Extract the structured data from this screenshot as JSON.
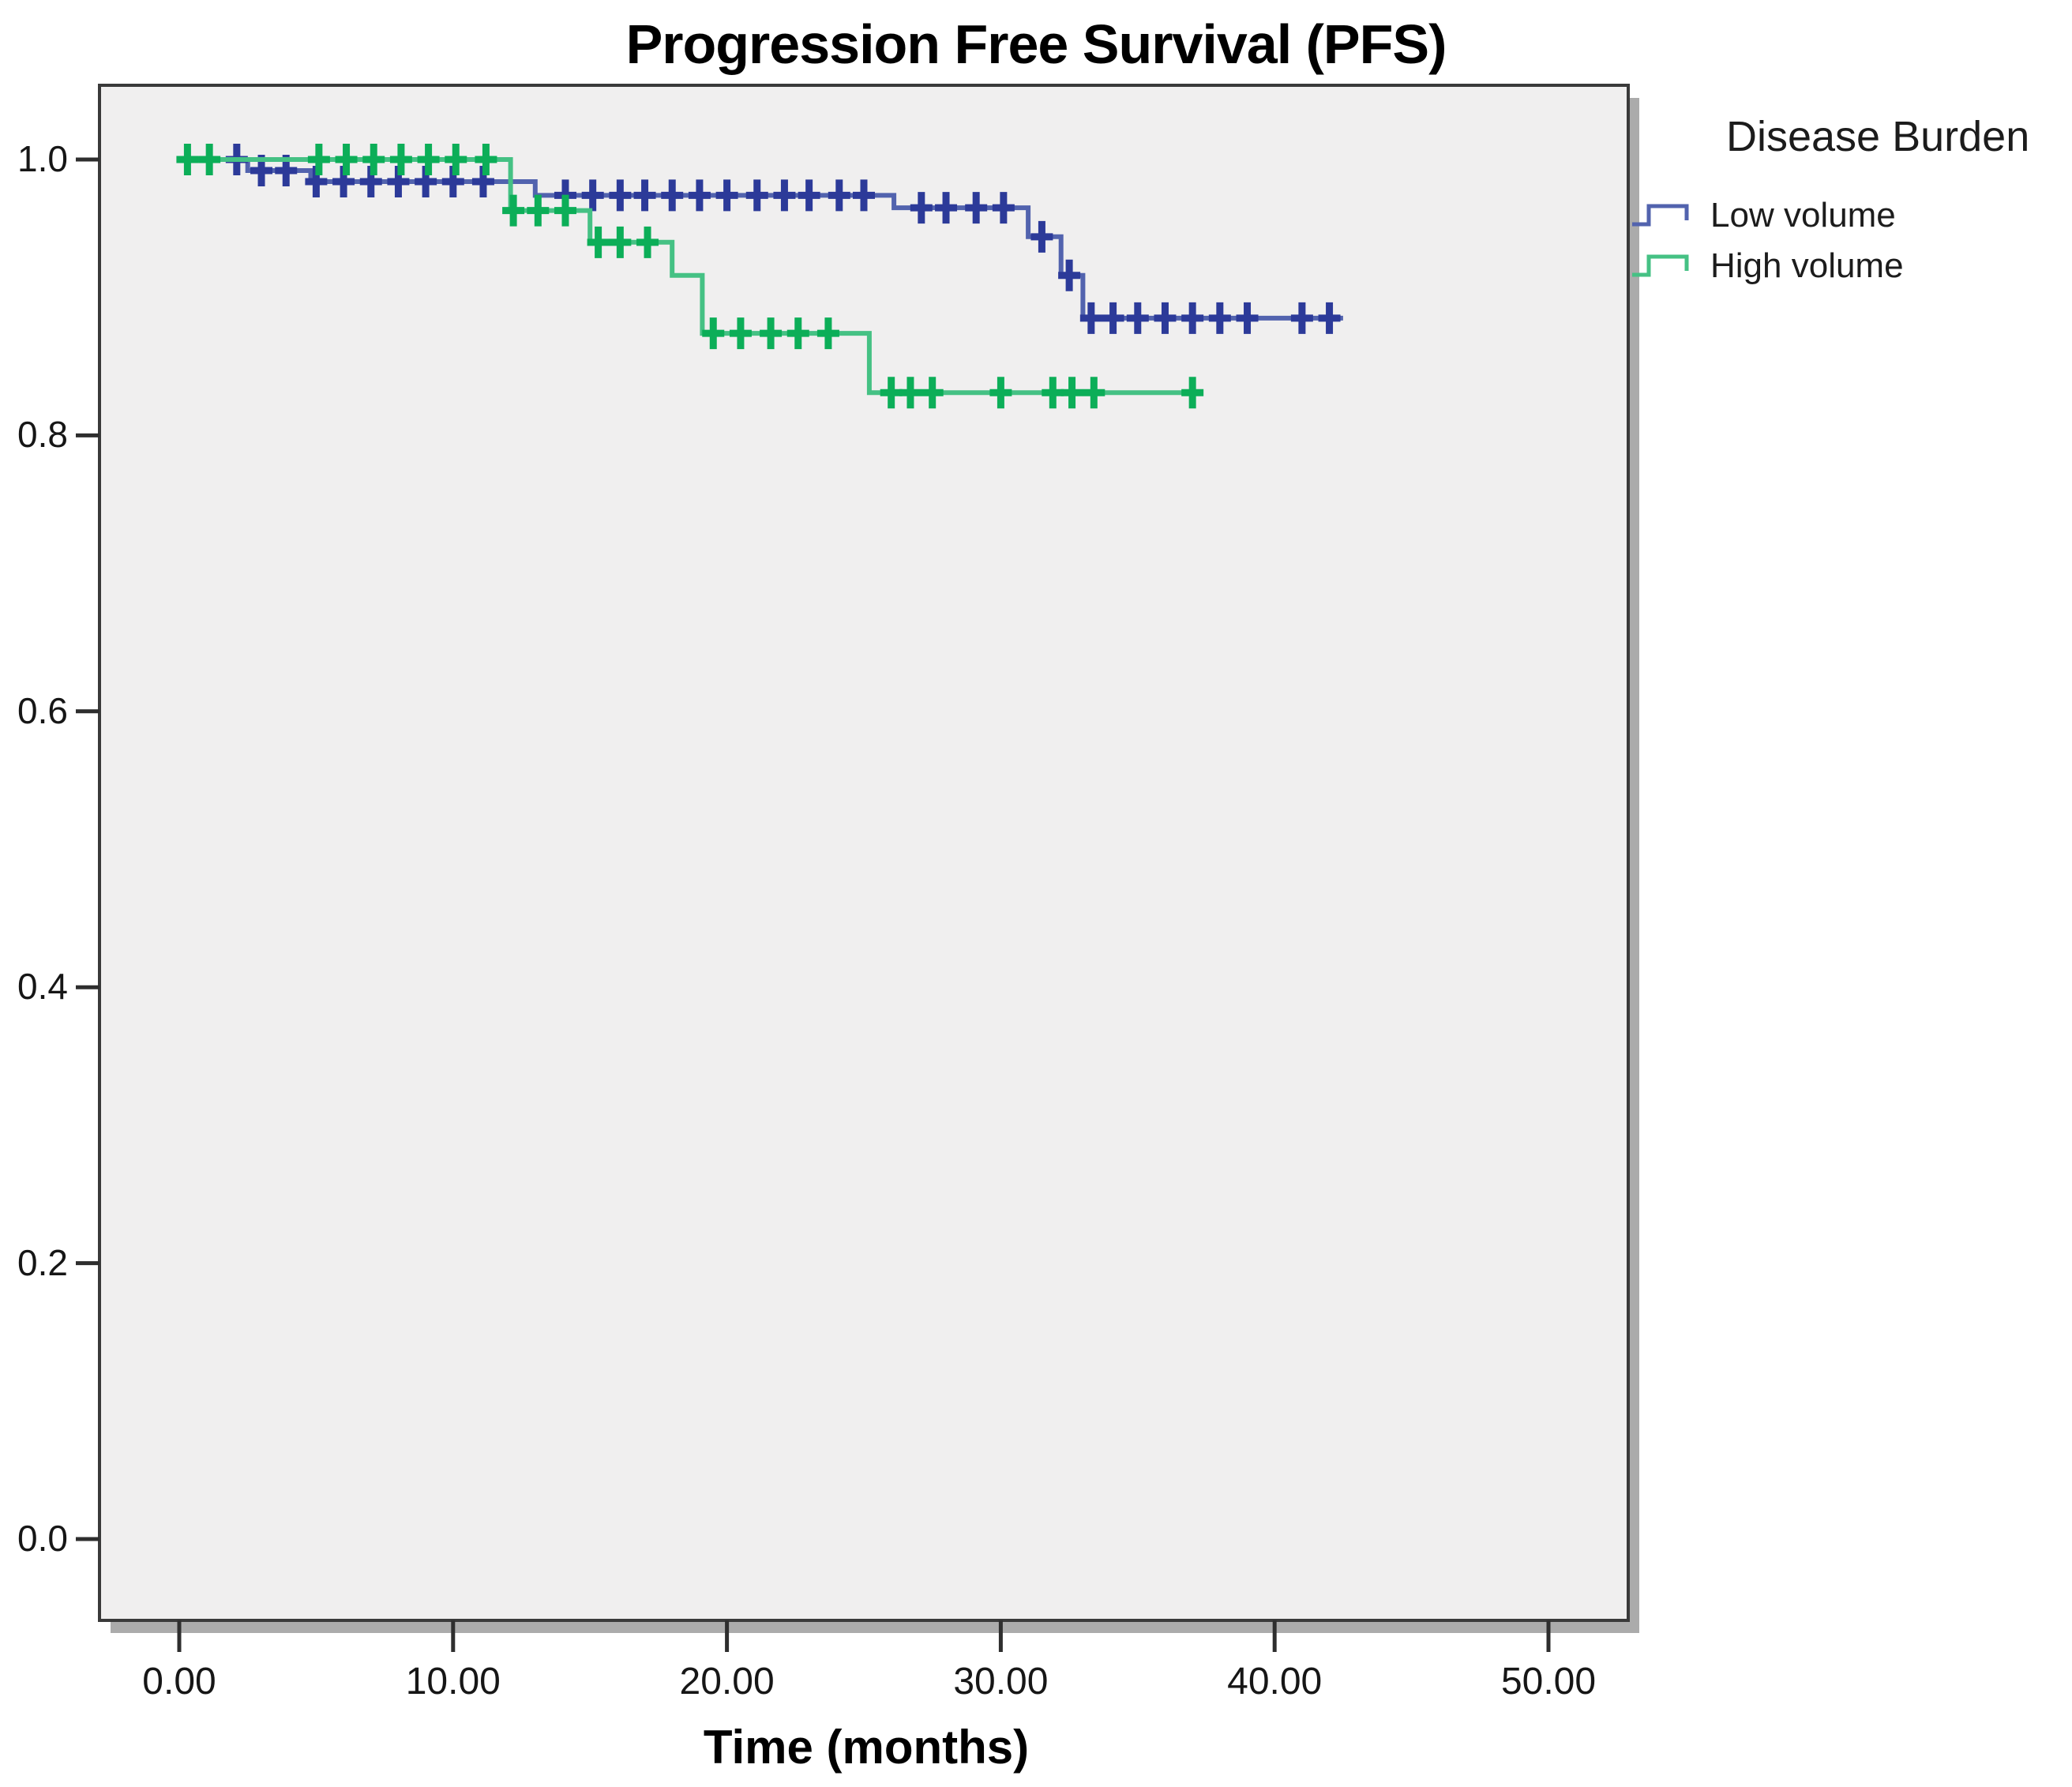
{
  "chart_data": {
    "type": "line",
    "subtype": "kaplan-meier-step-survival",
    "title": "Progression Free Survival (PFS)",
    "xlabel": "Time (months)",
    "ylabel": "",
    "xlim": [
      -2.9,
      52.9
    ],
    "ylim": [
      -0.05,
      1.05
    ],
    "grid": false,
    "plot_background": "#F0EFEF",
    "frame_color": "#3A3A3A",
    "shadow_color": "#ABABAB",
    "x_ticks": {
      "values": [
        0,
        10,
        20,
        30,
        40,
        50
      ],
      "labels": [
        "0.00",
        "10.00",
        "20.00",
        "30.00",
        "40.00",
        "50.00"
      ]
    },
    "y_ticks": {
      "values": [
        1.0,
        0.8,
        0.6,
        0.4,
        0.2,
        0.0
      ],
      "labels": [
        "1.0",
        "0.8",
        "0.6",
        "0.4",
        "0.2",
        "0.0"
      ]
    },
    "legend": {
      "title": "Disease Burden",
      "position": "right-top"
    },
    "series": [
      {
        "name": "Low volume",
        "line_color": "#5263AE",
        "marker_color": "#2C3A99",
        "end_time": 42.5,
        "steps_time_survival": [
          [
            0,
            1.0
          ],
          [
            2.5,
            0.992
          ],
          [
            4.8,
            0.984
          ],
          [
            13.0,
            0.974
          ],
          [
            26.1,
            0.965
          ],
          [
            31.0,
            0.944
          ],
          [
            32.2,
            0.916
          ],
          [
            33.0,
            0.885
          ]
        ],
        "censor_marks_time_survival": [
          [
            2.1,
            1.0
          ],
          [
            3.0,
            0.992
          ],
          [
            3.9,
            0.992
          ],
          [
            5.0,
            0.984
          ],
          [
            6.0,
            0.984
          ],
          [
            7.0,
            0.984
          ],
          [
            8.0,
            0.984
          ],
          [
            9.0,
            0.984
          ],
          [
            10.0,
            0.984
          ],
          [
            11.1,
            0.984
          ],
          [
            14.1,
            0.974
          ],
          [
            15.1,
            0.974
          ],
          [
            16.1,
            0.974
          ],
          [
            17.0,
            0.974
          ],
          [
            18.0,
            0.974
          ],
          [
            19.0,
            0.974
          ],
          [
            20.0,
            0.974
          ],
          [
            21.1,
            0.974
          ],
          [
            22.1,
            0.974
          ],
          [
            23.0,
            0.974
          ],
          [
            24.1,
            0.974
          ],
          [
            25.0,
            0.974
          ],
          [
            27.1,
            0.965
          ],
          [
            28.0,
            0.965
          ],
          [
            29.1,
            0.965
          ],
          [
            30.1,
            0.965
          ],
          [
            31.5,
            0.944
          ],
          [
            32.5,
            0.916
          ],
          [
            33.3,
            0.885
          ],
          [
            34.1,
            0.885
          ],
          [
            35.0,
            0.885
          ],
          [
            36.0,
            0.885
          ],
          [
            37.0,
            0.885
          ],
          [
            38.0,
            0.885
          ],
          [
            39.0,
            0.885
          ],
          [
            41.0,
            0.885
          ],
          [
            42.0,
            0.885
          ]
        ]
      },
      {
        "name": "High volume",
        "line_color": "#45C184",
        "marker_color": "#0CAE58",
        "end_time": 37.2,
        "steps_time_survival": [
          [
            0,
            1.0
          ],
          [
            12.1,
            0.963
          ],
          [
            15.0,
            0.94
          ],
          [
            18.0,
            0.916
          ],
          [
            19.1,
            0.874
          ],
          [
            25.2,
            0.831
          ]
        ],
        "censor_marks_time_survival": [
          [
            0.3,
            1.0
          ],
          [
            1.1,
            1.0
          ],
          [
            5.1,
            1.0
          ],
          [
            6.1,
            1.0
          ],
          [
            7.1,
            1.0
          ],
          [
            8.1,
            1.0
          ],
          [
            9.1,
            1.0
          ],
          [
            10.1,
            1.0
          ],
          [
            11.2,
            1.0
          ],
          [
            12.2,
            0.963
          ],
          [
            13.1,
            0.963
          ],
          [
            14.1,
            0.963
          ],
          [
            15.3,
            0.94
          ],
          [
            16.1,
            0.94
          ],
          [
            17.1,
            0.94
          ],
          [
            19.5,
            0.874
          ],
          [
            20.5,
            0.874
          ],
          [
            21.6,
            0.874
          ],
          [
            22.6,
            0.874
          ],
          [
            23.7,
            0.874
          ],
          [
            26.0,
            0.831
          ],
          [
            26.7,
            0.831
          ],
          [
            27.5,
            0.831
          ],
          [
            30.0,
            0.831
          ],
          [
            31.9,
            0.831
          ],
          [
            32.6,
            0.831
          ],
          [
            33.4,
            0.831
          ],
          [
            37.0,
            0.831
          ]
        ]
      }
    ]
  }
}
